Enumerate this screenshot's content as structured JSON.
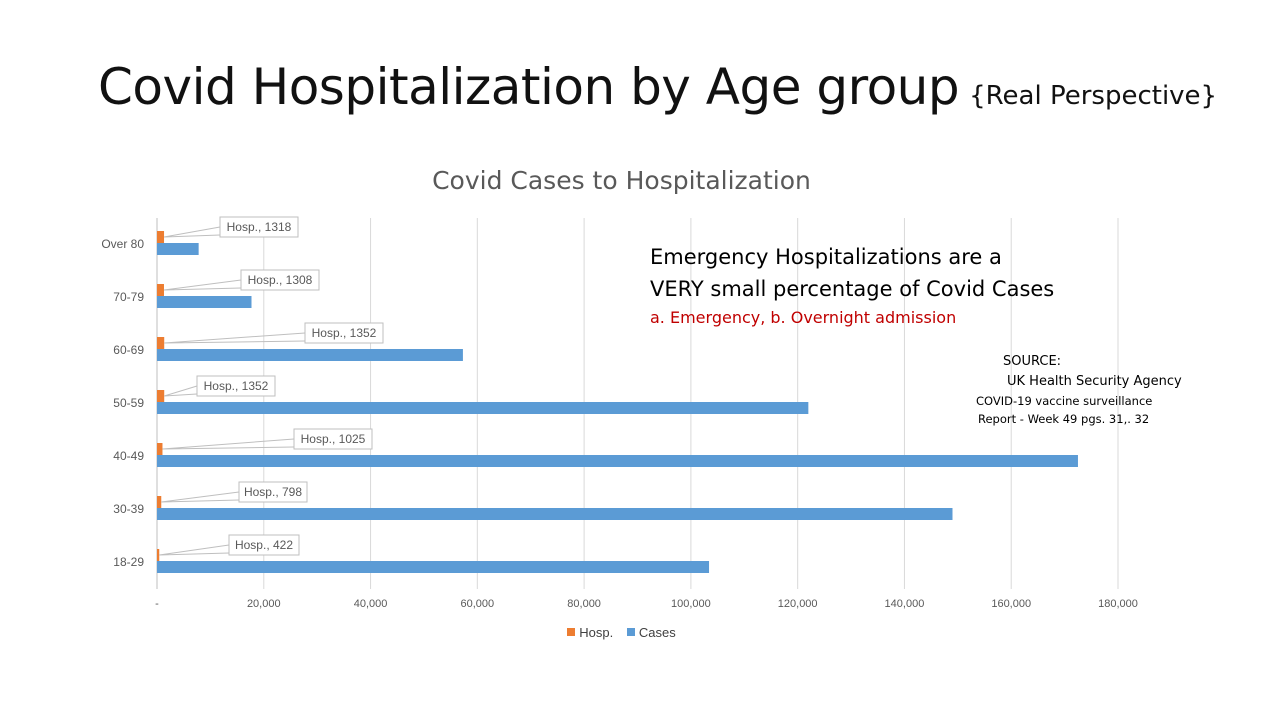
{
  "slide": {
    "title": "Covid Hospitalization by Age group",
    "subtitle": "{Real Perspective}"
  },
  "callout": {
    "line1": "Emergency Hospitalizations are a",
    "line2": "VERY small percentage of Covid Cases",
    "note": "a. Emergency,  b. Overnight  admission"
  },
  "source": {
    "line1": "SOURCE:",
    "line2": "UK Health Security Agency",
    "line3": "COVID-19 vaccine surveillance",
    "line4": "Report - Week 49   pgs. 31,. 32"
  },
  "chart_data": {
    "type": "bar",
    "orientation": "horizontal",
    "title": "Covid Cases to Hospitalization",
    "categories": [
      "Over 80",
      "70-79",
      "60-69",
      "50-59",
      "40-49",
      "30-39",
      "18-29"
    ],
    "series": [
      {
        "name": "Hosp.",
        "color": "#ed7d31",
        "values": [
          1318,
          1308,
          1352,
          1352,
          1025,
          798,
          422
        ]
      },
      {
        "name": "Cases",
        "color": "#5b9bd5",
        "values": [
          7800,
          17700,
          57300,
          122000,
          172500,
          149000,
          103400
        ]
      }
    ],
    "data_labels": [
      "Hosp., 1318",
      "Hosp., 1308",
      "Hosp., 1352",
      "Hosp., 1352",
      "Hosp., 1025",
      "Hosp., 798",
      "Hosp., 422"
    ],
    "xlim": [
      0,
      180000
    ],
    "x_ticks": [
      0,
      20000,
      40000,
      60000,
      80000,
      100000,
      120000,
      140000,
      160000,
      180000
    ],
    "x_tick_labels": [
      "-",
      "20,000",
      "40,000",
      "60,000",
      "80,000",
      "100,000",
      "120,000",
      "140,000",
      "160,000",
      "180,000"
    ],
    "grid": "vertical",
    "legend": "bottom"
  }
}
